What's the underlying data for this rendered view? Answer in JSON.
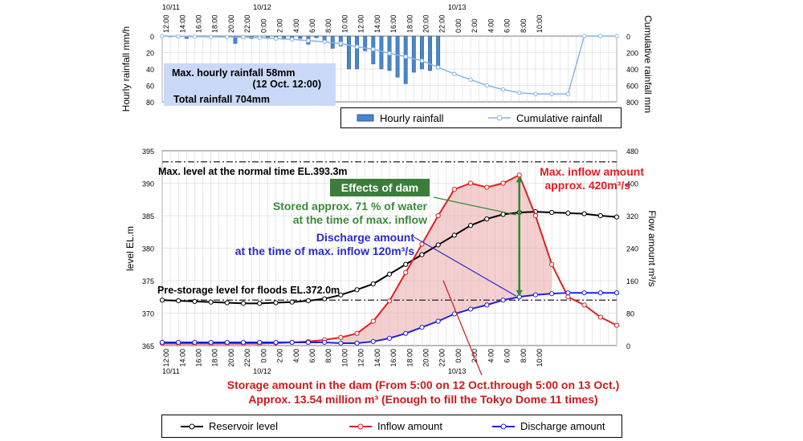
{
  "chart_data": [
    {
      "type": "bar",
      "title": "",
      "ylabel": "Hourly rainfall mm/h",
      "y2label": "Cumulative rainfall mm",
      "ylim": [
        80,
        0
      ],
      "y2lim": [
        800,
        0
      ],
      "yticks": [
        "0",
        "20",
        "40",
        "60",
        "80"
      ],
      "y2ticks": [
        "0",
        "200",
        "400",
        "600",
        "800"
      ],
      "xticks": [
        "12:00",
        "14:00",
        "16:00",
        "18:00",
        "20:00",
        "22:00",
        "0:00",
        "2:00",
        "4:00",
        "6:00",
        "8:00",
        "10:00",
        "12:00",
        "14:00",
        "16:00",
        "18:00",
        "20:00",
        "22:00",
        "0:00",
        "2:00",
        "4:00",
        "6:00",
        "8:00",
        "10:00"
      ],
      "date_labels": [
        {
          "text": "10/11",
          "at": 0
        },
        {
          "text": "10/12",
          "at": 12
        },
        {
          "text": "10/13",
          "at": 36
        }
      ],
      "series": [
        {
          "name": "Hourly rainfall",
          "type": "bar",
          "x": [
            1,
            2,
            3,
            4,
            5,
            6,
            7,
            8,
            9,
            10,
            11,
            12,
            13,
            14,
            15,
            16,
            17,
            18,
            19,
            20,
            21,
            22,
            23,
            24,
            25,
            26,
            27,
            28,
            29,
            30,
            31,
            32,
            33,
            34
          ],
          "values": [
            1,
            1,
            3,
            1,
            1,
            2,
            1,
            1,
            9,
            3,
            3,
            2,
            3,
            2,
            4,
            4,
            3,
            10,
            2,
            6,
            15,
            12,
            40,
            40,
            18,
            34,
            40,
            42,
            50,
            58,
            44,
            40,
            42,
            40
          ]
        },
        {
          "name": "Cumulative rainfall",
          "type": "line",
          "x": [
            0,
            2,
            4,
            6,
            8,
            10,
            12,
            14,
            16,
            18,
            20,
            22,
            24,
            26,
            28,
            30,
            32,
            34,
            36,
            38,
            40,
            42,
            44,
            46,
            48,
            50,
            52,
            54,
            56
          ],
          "values": [
            0,
            3,
            6,
            8,
            10,
            12,
            20,
            30,
            40,
            55,
            70,
            90,
            130,
            160,
            210,
            250,
            300,
            380,
            460,
            530,
            600,
            650,
            690,
            704,
            704,
            704,
            0,
            0,
            0
          ]
        }
      ],
      "annotation": {
        "line1": "Max. hourly rainfall 58mm",
        "line2": "(12 Oct. 12:00)",
        "line3": "Total rainfall 704mm"
      }
    },
    {
      "type": "line",
      "title": "",
      "ylabel": "level EL.m",
      "y2label": "Flow amount m³/s",
      "ylim": [
        365,
        395
      ],
      "y2lim": [
        0,
        480
      ],
      "yticks": [
        "365",
        "370",
        "375",
        "380",
        "385",
        "390",
        "395"
      ],
      "y2ticks": [
        "0",
        "80",
        "160",
        "240",
        "320",
        "400",
        "480"
      ],
      "xticks": [
        "12:00",
        "14:00",
        "16:00",
        "18:00",
        "20:00",
        "22:00",
        "0:00",
        "2:00",
        "4:00",
        "6:00",
        "8:00",
        "10:00",
        "12:00",
        "14:00",
        "16:00",
        "18:00",
        "20:00",
        "22:00",
        "0:00",
        "2:00",
        "4:00",
        "6:00",
        "8:00",
        "10:00"
      ],
      "date_labels": [
        {
          "text": "10/11",
          "at": 0
        },
        {
          "text": "10/12",
          "at": 12
        },
        {
          "text": "10/13",
          "at": 36
        }
      ],
      "reference_lines": [
        {
          "name": "Max. level at the normal time EL.393.3m",
          "y": 393.3
        },
        {
          "name": "Pre-storage level for floods EL.372.0m",
          "y": 372.0
        }
      ],
      "series": [
        {
          "name": "Reservoir level",
          "axis": "left",
          "color": "#000000",
          "x": [
            0,
            2,
            4,
            6,
            8,
            10,
            12,
            14,
            16,
            18,
            20,
            22,
            24,
            26,
            28,
            30,
            32,
            34,
            36,
            38,
            40,
            42,
            44,
            46,
            48,
            50,
            52,
            54,
            56
          ],
          "values": [
            372,
            371.9,
            371.8,
            371.7,
            371.6,
            371.5,
            371.5,
            371.6,
            371.7,
            371.9,
            372.2,
            372.8,
            373.6,
            374.5,
            376,
            377.5,
            379,
            380.5,
            382,
            383.5,
            384.5,
            385.2,
            385.5,
            385.6,
            385.5,
            385.4,
            385.3,
            385,
            384.8
          ]
        },
        {
          "name": "Inflow amount",
          "axis": "right",
          "color": "#e02020",
          "x": [
            0,
            2,
            4,
            6,
            8,
            10,
            12,
            14,
            16,
            18,
            20,
            22,
            24,
            26,
            28,
            30,
            32,
            34,
            36,
            38,
            40,
            42,
            44,
            46,
            48,
            50,
            52,
            54,
            56
          ],
          "values": [
            5,
            5,
            5,
            5,
            5,
            5,
            5,
            6,
            8,
            10,
            14,
            20,
            30,
            60,
            110,
            180,
            250,
            320,
            385,
            400,
            390,
            400,
            420,
            320,
            200,
            120,
            100,
            70,
            50
          ]
        },
        {
          "name": "Discharge amount",
          "axis": "right",
          "color": "#2020e0",
          "x": [
            0,
            2,
            4,
            6,
            8,
            10,
            12,
            14,
            16,
            18,
            20,
            22,
            24,
            26,
            28,
            30,
            32,
            34,
            36,
            38,
            40,
            42,
            44,
            46,
            48,
            50,
            52,
            54,
            56
          ],
          "values": [
            8,
            8,
            8,
            8,
            8,
            8,
            8,
            8,
            8,
            8,
            8,
            6,
            6,
            10,
            18,
            30,
            45,
            60,
            78,
            90,
            100,
            112,
            120,
            125,
            128,
            130,
            130,
            130,
            130
          ]
        }
      ],
      "annotations": {
        "max_inflow_1": "Max. inflow amount",
        "max_inflow_2": "approx. 420m³/s",
        "effects": "Effects of dam",
        "stored_1": "Stored approx. 71 % of water",
        "stored_2": "at the time of max. inflow",
        "discharge_1": "Discharge amount",
        "discharge_2": "at the time of max. inflow 120m³/s",
        "storage_1": "Storage amount in the dam (From 5:00 on 12 Oct.through 5:00 on 13 Oct.)",
        "storage_2": "Approx. 13.54 million m³ (Enough to fill the Tokyo Dome 11 times)"
      }
    }
  ]
}
